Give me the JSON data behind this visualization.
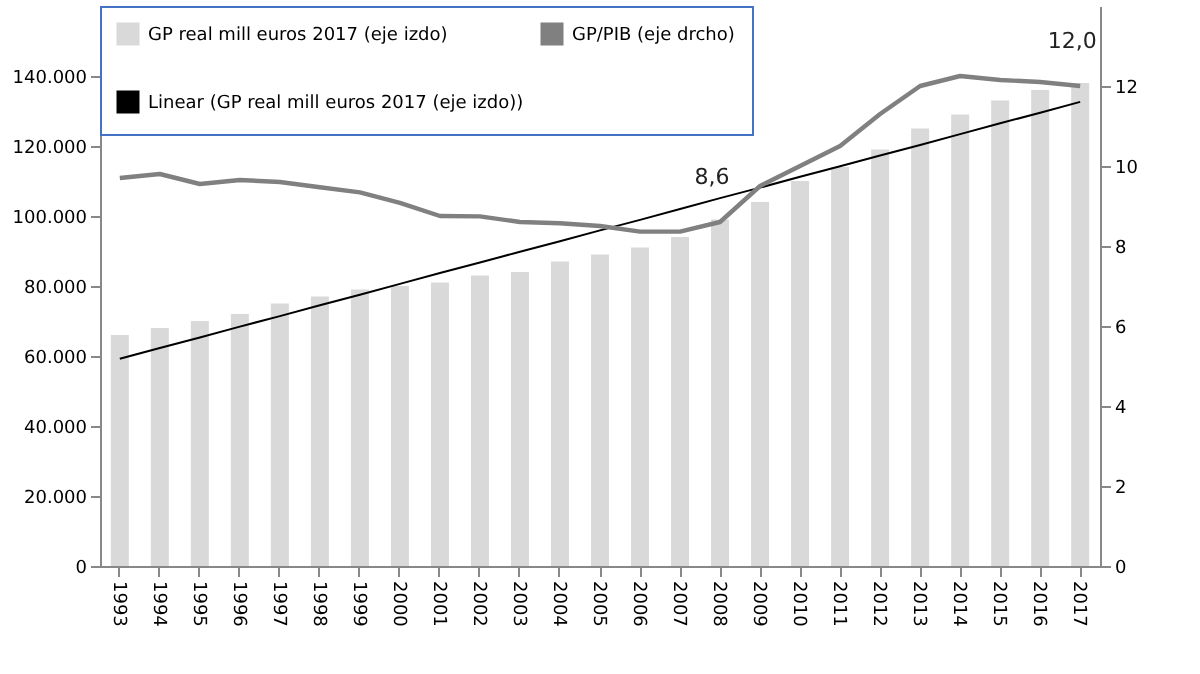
{
  "chart_data": {
    "type": "bar",
    "categories": [
      "1993",
      "1994",
      "1995",
      "1996",
      "1997",
      "1998",
      "1999",
      "2000",
      "2001",
      "2002",
      "2003",
      "2004",
      "2005",
      "2006",
      "2007",
      "2008",
      "2009",
      "2010",
      "2011",
      "2012",
      "2013",
      "2014",
      "2015",
      "2016",
      "2017"
    ],
    "series": [
      {
        "name": "GP real mill euros 2017 (eje izdo)",
        "color": "#d9d9d9",
        "values": [
          66000,
          68000,
          70000,
          72000,
          75000,
          77000,
          79000,
          80000,
          81000,
          83000,
          84000,
          87000,
          89000,
          91000,
          94000,
          99000,
          104000,
          110000,
          114000,
          119000,
          125000,
          129000,
          133000,
          136000,
          138000
        ]
      },
      {
        "name": "Linear (GP real mill euros 2017 (eje izdo))",
        "type": "line",
        "color": "#000000",
        "values": [
          59200,
          62300,
          65300,
          68400,
          71400,
          74500,
          77500,
          80600,
          83700,
          86700,
          89800,
          92800,
          95900,
          98900,
          102000,
          105100,
          108100,
          111200,
          114200,
          117300,
          120300,
          123400,
          126500,
          129500,
          132600
        ]
      },
      {
        "name": "GP/PIB (eje drcho)",
        "type": "line",
        "axis": "y2",
        "color": "#808080",
        "values": [
          9.7,
          9.8,
          9.55,
          9.65,
          9.6,
          9.47,
          9.34,
          9.08,
          8.75,
          8.74,
          8.6,
          8.57,
          8.5,
          8.36,
          8.36,
          8.6,
          9.5,
          10.0,
          10.5,
          11.3,
          12.0,
          12.25,
          12.15,
          12.1,
          12.0
        ],
        "value_labels": [
          null,
          null,
          null,
          null,
          null,
          null,
          null,
          null,
          null,
          null,
          null,
          null,
          null,
          null,
          null,
          "8,6",
          null,
          null,
          null,
          null,
          null,
          null,
          null,
          null,
          "12,0"
        ]
      }
    ],
    "ylim": [
      0,
      160000
    ],
    "yticks": [
      {
        "value": 0,
        "label": "0"
      },
      {
        "value": 20000,
        "label": "20.000"
      },
      {
        "value": 40000,
        "label": "40.000"
      },
      {
        "value": 60000,
        "label": "60.000"
      },
      {
        "value": 80000,
        "label": "80.000"
      },
      {
        "value": 100000,
        "label": "100.000"
      },
      {
        "value": 120000,
        "label": "120.000"
      },
      {
        "value": 140000,
        "label": "140.000"
      }
    ],
    "y2lim": [
      0,
      14
    ],
    "y2ticks": [
      0,
      2,
      4,
      6,
      8,
      10,
      12
    ],
    "grid": false,
    "legend": "top"
  }
}
